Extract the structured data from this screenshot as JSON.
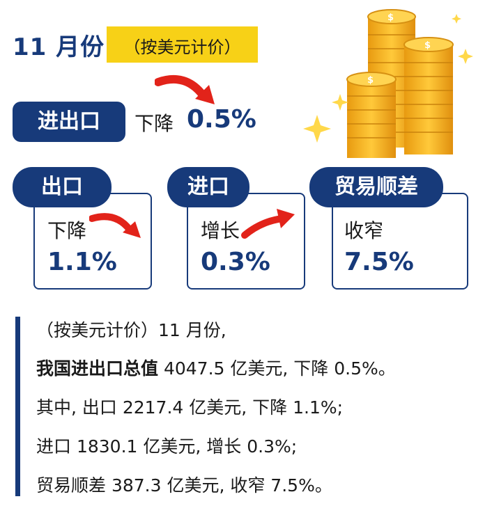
{
  "header": {
    "month": "11 月份",
    "currency_note": "（按美元计价）"
  },
  "trade": {
    "label": "进出口",
    "direction": "下降",
    "value": "0.5%"
  },
  "cards": [
    {
      "label": "出口",
      "direction": "下降",
      "value": "1.1%",
      "arrow": "down"
    },
    {
      "label": "进口",
      "direction": "增长",
      "value": "0.3%",
      "arrow": "up"
    },
    {
      "label": "贸易顺差",
      "direction": "收窄",
      "value": "7.5%",
      "arrow": "none"
    }
  ],
  "summary": {
    "line1": "（按美元计价）11 月份,",
    "line2_bold": "我国进出口总值",
    "line2_rest": " 4047.5 亿美元, 下降 0.5%。",
    "line3": "其中, 出口 2217.4 亿美元, 下降 1.1%;",
    "line4": "进口 1830.1 亿美元, 增长 0.3%;",
    "line5": "贸易顺差 387.3 亿美元, 收窄 7.5%。"
  },
  "colors": {
    "navy": "#173a7a",
    "yellow_tag": "#f7d117",
    "arrow_red": "#e2231a",
    "coin_gold": "#f5b31c"
  },
  "icons": {
    "coins": "gold-dollar-coin-stacks-icon",
    "sparkles": "sparkle-icon"
  }
}
